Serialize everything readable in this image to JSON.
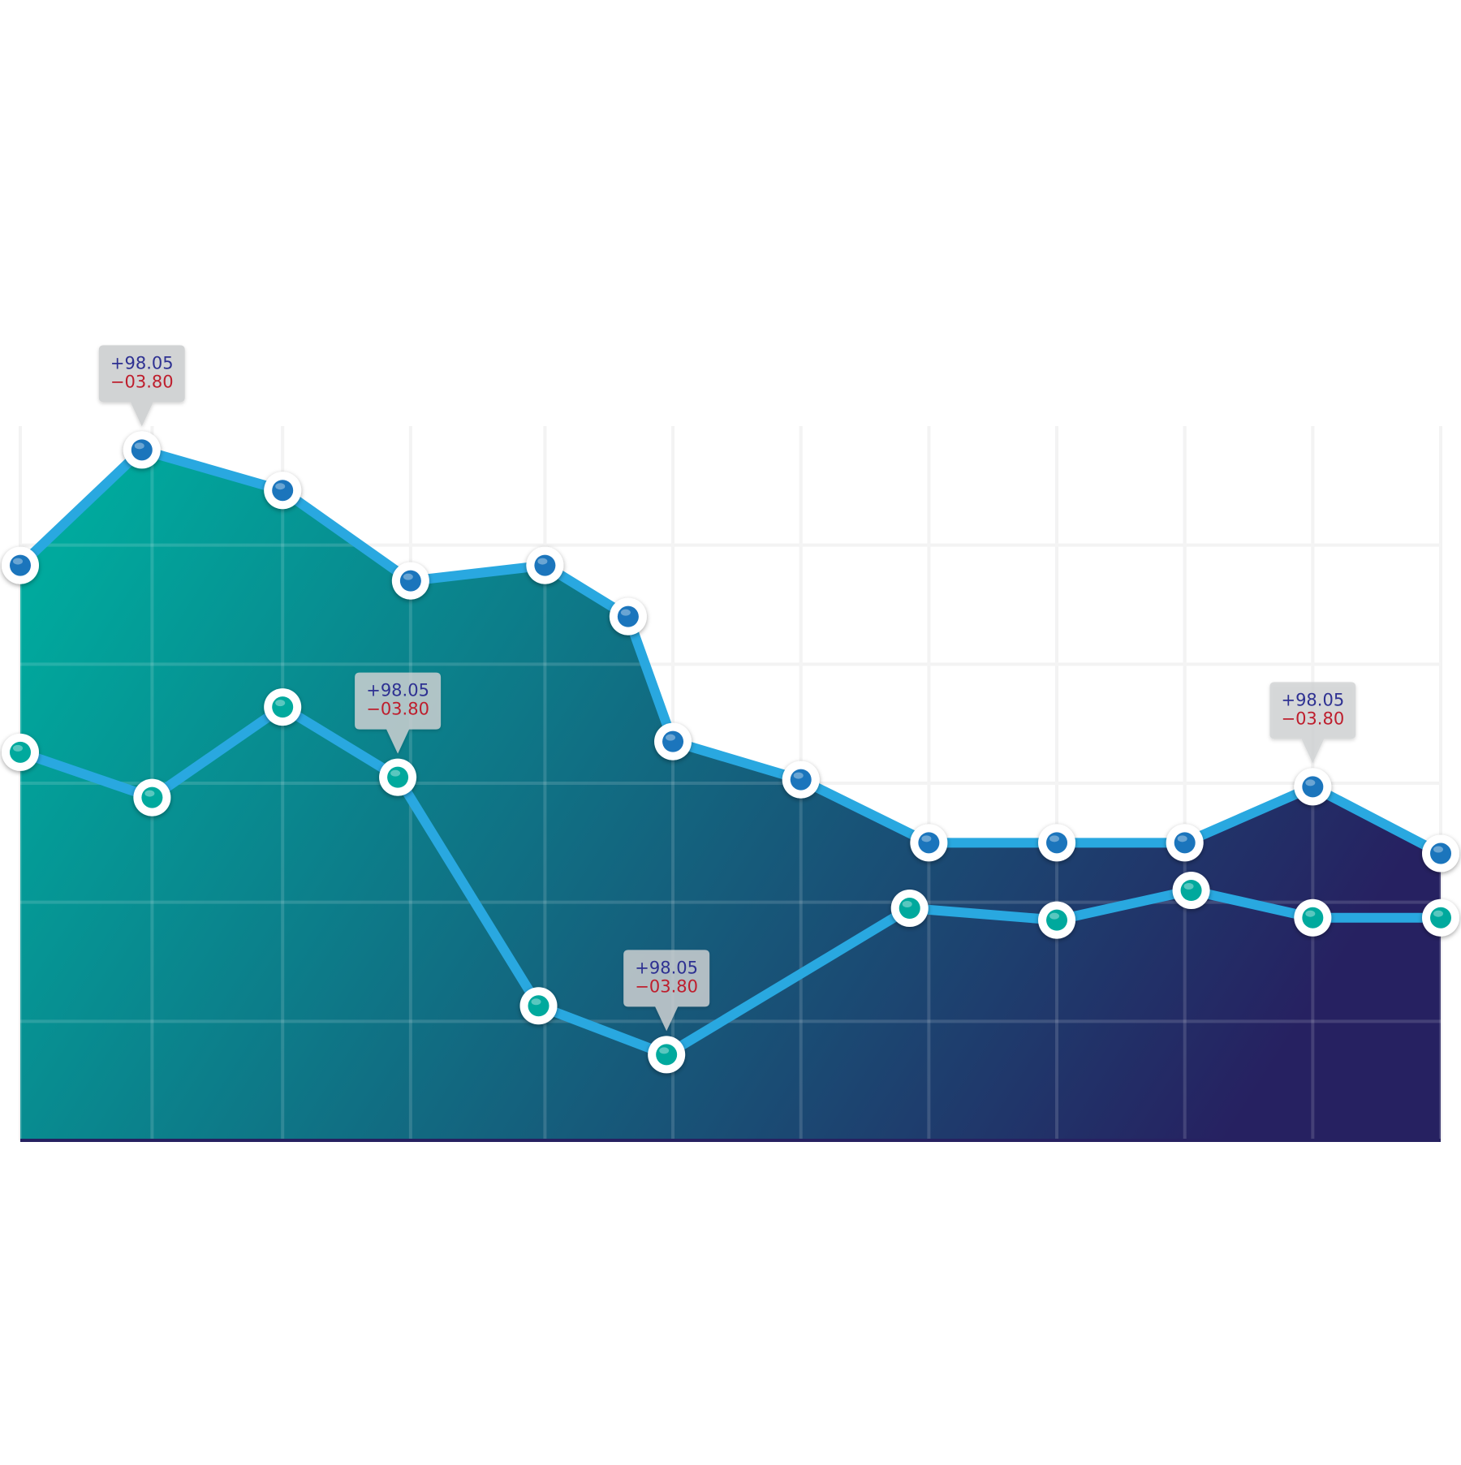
{
  "chart_data": {
    "type": "area",
    "title": "",
    "xlabel": "",
    "ylabel": "",
    "grid": true,
    "legend": "none",
    "ylim": [
      0,
      6
    ],
    "series": [
      {
        "values": [
          {
            "x": 0.0,
            "y": 4.83
          },
          {
            "x": 0.95,
            "y": 5.8
          },
          {
            "x": 2.05,
            "y": 5.46
          },
          {
            "x": 3.05,
            "y": 4.7
          },
          {
            "x": 4.1,
            "y": 4.83
          },
          {
            "x": 4.75,
            "y": 4.4
          },
          {
            "x": 5.1,
            "y": 3.35
          },
          {
            "x": 6.1,
            "y": 3.03
          },
          {
            "x": 7.1,
            "y": 2.5
          },
          {
            "x": 8.1,
            "y": 2.5
          },
          {
            "x": 9.1,
            "y": 2.5
          },
          {
            "x": 10.1,
            "y": 2.97
          },
          {
            "x": 11.1,
            "y": 2.41
          }
        ]
      },
      {
        "values": [
          {
            "x": 0.0,
            "y": 3.26
          },
          {
            "x": 1.03,
            "y": 2.88
          },
          {
            "x": 2.05,
            "y": 3.64
          },
          {
            "x": 2.95,
            "y": 3.05
          },
          {
            "x": 4.05,
            "y": 1.13
          },
          {
            "x": 5.05,
            "y": 0.72
          },
          {
            "x": 6.95,
            "y": 1.95
          },
          {
            "x": 8.1,
            "y": 1.85
          },
          {
            "x": 9.15,
            "y": 2.1
          },
          {
            "x": 10.1,
            "y": 1.87
          },
          {
            "x": 11.1,
            "y": 1.87
          }
        ]
      }
    ],
    "annotations": [
      {
        "series": 0,
        "point": 1,
        "line1": "+98.05",
        "line2": "−03.80"
      },
      {
        "series": 1,
        "point": 3,
        "line1": "+98.05",
        "line2": "−03.80"
      },
      {
        "series": 1,
        "point": 5,
        "line1": "+98.05",
        "line2": "−03.80"
      },
      {
        "series": 0,
        "point": 11,
        "line1": "+98.05",
        "line2": "−03.80"
      }
    ],
    "colors": {
      "line": "#29a8e0",
      "area_top": "#00a99d",
      "area_bottom": "#262161",
      "grid": "#f1f1f2",
      "marker_series_0": "#1b75bc",
      "marker_series_1": "#00a99d",
      "marker_ring": "#ffffff",
      "tooltip_bg": "#d1d3d4",
      "tooltip_text_up": "#2e3192",
      "tooltip_text_down": "#be1e2d"
    }
  }
}
